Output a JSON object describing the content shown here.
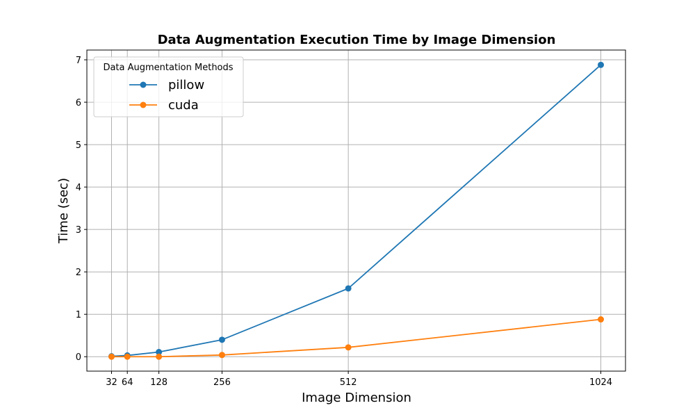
{
  "chart_data": {
    "type": "line",
    "title": "Data Augmentation Execution Time by Image Dimension",
    "xlabel": "Image Dimension",
    "ylabel": "Time (sec)",
    "x": [
      32,
      64,
      128,
      256,
      512,
      1024
    ],
    "x_ticks": [
      32,
      64,
      128,
      256,
      512,
      1024
    ],
    "y_ticks": [
      0,
      1,
      2,
      3,
      4,
      5,
      6,
      7
    ],
    "xlim": [
      -18,
      1074
    ],
    "ylim": [
      -0.34,
      7.23
    ],
    "grid": true,
    "legend": {
      "title": "Data Augmentation Methods",
      "placement": "upper-left"
    },
    "series": [
      {
        "name": "pillow",
        "color": "#1f77b4",
        "values": [
          0.01,
          0.03,
          0.11,
          0.4,
          1.61,
          6.88
        ]
      },
      {
        "name": "cuda",
        "color": "#ff7f0e",
        "values": [
          0.0,
          0.0,
          0.0,
          0.04,
          0.22,
          0.88
        ]
      }
    ]
  }
}
